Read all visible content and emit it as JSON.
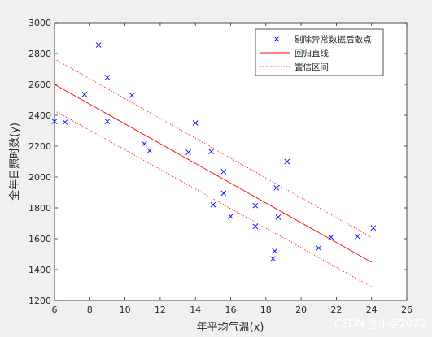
{
  "chart_data": {
    "type": "scatter",
    "xlabel": "年平均气温(x)",
    "ylabel": "全年日照时数(y)",
    "xlim": [
      6,
      26
    ],
    "ylim": [
      1200,
      3000
    ],
    "xticks": [
      6,
      8,
      10,
      12,
      14,
      16,
      18,
      20,
      22,
      24,
      26
    ],
    "yticks": [
      1200,
      1400,
      1600,
      1800,
      2000,
      2200,
      2400,
      2600,
      2800,
      3000
    ],
    "grid": false,
    "legend_position": "top-right",
    "series": [
      {
        "name": "剔除异常数据后散点",
        "kind": "points",
        "color": "#0000ff",
        "marker": "x",
        "x": [
          6.0,
          6.6,
          7.7,
          8.5,
          9.0,
          9.0,
          10.4,
          11.1,
          11.4,
          13.6,
          14.0,
          14.9,
          15.0,
          15.6,
          15.6,
          16.0,
          17.4,
          17.4,
          18.4,
          18.5,
          18.6,
          18.7,
          19.2,
          21.0,
          21.7,
          23.2,
          24.1
        ],
        "y": [
          2360,
          2355,
          2535,
          2855,
          2645,
          2360,
          2530,
          2215,
          2170,
          2160,
          2350,
          2165,
          1820,
          1895,
          2035,
          1745,
          1680,
          1815,
          1470,
          1520,
          1930,
          1740,
          2100,
          1540,
          1610,
          1615,
          1670
        ]
      },
      {
        "name": "回归直线",
        "kind": "line",
        "color": "#ff0000",
        "dash": "solid",
        "x": [
          6,
          24
        ],
        "y": [
          2600,
          1448
        ]
      },
      {
        "name": "置信区间",
        "kind": "line",
        "color": "#ff0000",
        "dash": "dotted",
        "x": [
          6,
          24
        ],
        "y": [
          2765,
          1608
        ]
      },
      {
        "name": "",
        "kind": "line",
        "color": "#ff0000",
        "dash": "dotted",
        "x": [
          6,
          24
        ],
        "y": [
          2430,
          1288
        ]
      }
    ]
  },
  "watermark": "CSDN @小宇2022"
}
